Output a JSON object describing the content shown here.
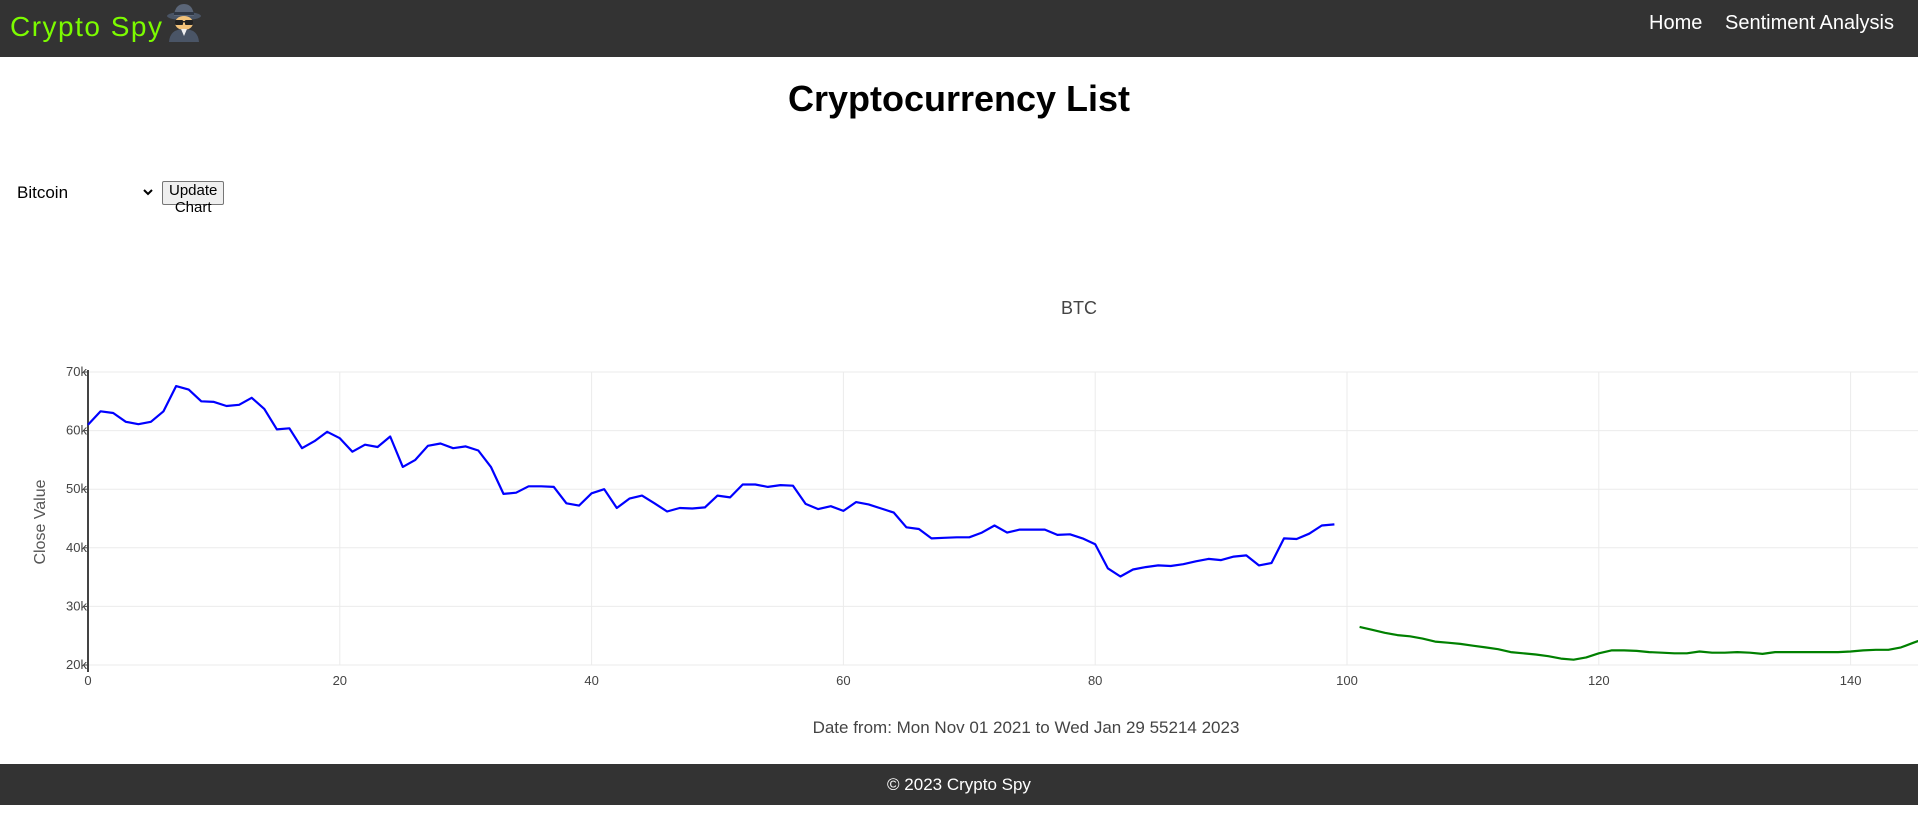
{
  "nav": {
    "brand": "Crypto Spy",
    "links": [
      "Home",
      "Sentiment Analysis"
    ]
  },
  "page": {
    "title": "Cryptocurrency List"
  },
  "controls": {
    "selected_crypto": "Bitcoin",
    "update_button": "Update Chart"
  },
  "footer": {
    "text": "© 2023 Crypto Spy"
  },
  "chart_data": {
    "type": "line",
    "title": "BTC",
    "xlabel": "Date from: Mon Nov 01 2021 to Wed Jan 29 55214 2023",
    "ylabel": "Close Value",
    "xlim": [
      0,
      148
    ],
    "ylim": [
      20000,
      70000
    ],
    "x_ticks": [
      0,
      20,
      40,
      60,
      80,
      100,
      120,
      140
    ],
    "y_ticks": [
      20000,
      30000,
      40000,
      50000,
      60000,
      70000
    ],
    "y_tick_labels": [
      "20k",
      "30k",
      "40k",
      "50k",
      "60k",
      "70k"
    ],
    "grid": true,
    "series": [
      {
        "color": "#0000ff",
        "x_start": 0,
        "values": [
          61000,
          63300,
          63000,
          61500,
          61100,
          61500,
          63300,
          67600,
          67000,
          65000,
          64900,
          64200,
          64400,
          65600,
          63700,
          60200,
          60400,
          57000,
          58200,
          59800,
          58700,
          56400,
          57600,
          57200,
          59000,
          53800,
          55000,
          57400,
          57800,
          57000,
          57300,
          56600,
          53800,
          49200,
          49400,
          50500,
          50500,
          50400,
          47600,
          47200,
          49300,
          50000,
          46800,
          48400,
          48900,
          47600,
          46200,
          46800,
          46700,
          46900,
          48900,
          48600,
          50800,
          50800,
          50400,
          50700,
          50600,
          47500,
          46600,
          47100,
          46300,
          47800,
          47400,
          46700,
          46000,
          43500,
          43200,
          41600,
          41700,
          41800,
          41800,
          42600,
          43800,
          42600,
          43100,
          43100,
          43100,
          42200,
          42300,
          41600,
          40600,
          36500,
          35100,
          36300,
          36700,
          37000,
          36900,
          37200,
          37700,
          38100,
          37900,
          38500,
          38700,
          37000,
          37400,
          41600,
          41500,
          42400,
          43800,
          44000
        ]
      },
      {
        "color": "#008000",
        "x_start": 101,
        "values": [
          26500,
          26000,
          25500,
          25100,
          24900,
          24500,
          24000,
          23800,
          23600,
          23300,
          23000,
          22700,
          22200,
          22000,
          21800,
          21500,
          21100,
          20900,
          21300,
          22000,
          22500,
          22500,
          22400,
          22200,
          22100,
          22000,
          22000,
          22300,
          22100,
          22100,
          22200,
          22100,
          21900,
          22200,
          22200,
          22200,
          22200,
          22200,
          22200,
          22300,
          22500,
          22600,
          22600,
          23000,
          23800,
          24600
        ]
      }
    ]
  }
}
